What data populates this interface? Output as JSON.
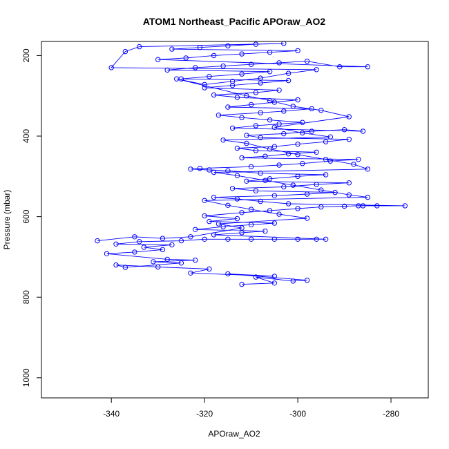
{
  "chart_data": {
    "type": "scatter",
    "title": "ATOM1 Northeast_Pacific APOraw_AO2",
    "xlabel": "APOraw_AO2",
    "ylabel": "Pressure (mbar)",
    "xlim": [
      -355,
      -272
    ],
    "ylim": [
      1050,
      165
    ],
    "y_reversed": true,
    "x_ticks": [
      -340,
      -320,
      -300,
      -280
    ],
    "y_ticks": [
      200,
      400,
      600,
      800,
      1000
    ],
    "marker": "open-circle",
    "connected_lines": true,
    "grid": false,
    "legend": "none",
    "colors": {
      "series": "#0000ff"
    },
    "series": [
      {
        "name": "",
        "points": [
          [
            -312,
            768
          ],
          [
            -305,
            765
          ],
          [
            -309,
            750
          ],
          [
            -301,
            760
          ],
          [
            -298,
            758
          ],
          [
            -315,
            742
          ],
          [
            -305,
            748
          ],
          [
            -323,
            740
          ],
          [
            -319,
            730
          ],
          [
            -330,
            725
          ],
          [
            -339,
            720
          ],
          [
            -337,
            726
          ],
          [
            -325,
            715
          ],
          [
            -331,
            712
          ],
          [
            -322,
            708
          ],
          [
            -328,
            706
          ],
          [
            -341,
            692
          ],
          [
            -335,
            688
          ],
          [
            -329,
            682
          ],
          [
            -333,
            676
          ],
          [
            -327,
            670
          ],
          [
            -339,
            668
          ],
          [
            -334,
            662
          ],
          [
            -325,
            660
          ],
          [
            -320,
            656
          ],
          [
            -315,
            656
          ],
          [
            -310,
            656
          ],
          [
            -305,
            656
          ],
          [
            -300,
            656
          ],
          [
            -296,
            656
          ],
          [
            -294,
            656
          ],
          [
            -318,
            645
          ],
          [
            -312,
            640
          ],
          [
            -307,
            636
          ],
          [
            -322,
            632
          ],
          [
            -316,
            625
          ],
          [
            -310,
            620
          ],
          [
            -305,
            616
          ],
          [
            -319,
            612
          ],
          [
            -313,
            605
          ],
          [
            -320,
            598
          ],
          [
            -312,
            590
          ],
          [
            -306,
            585
          ],
          [
            -300,
            580
          ],
          [
            -295,
            576
          ],
          [
            -290,
            574
          ],
          [
            -287,
            573
          ],
          [
            -286,
            573
          ],
          [
            -283,
            573
          ],
          [
            -277,
            573
          ],
          [
            -302,
            568
          ],
          [
            -308,
            562
          ],
          [
            -313,
            556
          ],
          [
            -318,
            552
          ],
          [
            -305,
            548
          ],
          [
            -298,
            544
          ],
          [
            -292,
            540
          ],
          [
            -309,
            536
          ],
          [
            -314,
            530
          ],
          [
            -303,
            526
          ],
          [
            -296,
            520
          ],
          [
            -289,
            516
          ],
          [
            -311,
            512
          ],
          [
            -306,
            506
          ],
          [
            -300,
            500
          ],
          [
            -294,
            496
          ],
          [
            -308,
            492
          ],
          [
            -315,
            486
          ],
          [
            -319,
            484
          ],
          [
            -323,
            482
          ],
          [
            -321,
            480
          ],
          [
            -310,
            476
          ],
          [
            -304,
            472
          ],
          [
            -299,
            468
          ],
          [
            -293,
            462
          ],
          [
            -287,
            458
          ],
          [
            -312,
            454
          ],
          [
            -307,
            450
          ],
          [
            -302,
            444
          ],
          [
            -296,
            440
          ],
          [
            -309,
            436
          ],
          [
            -313,
            430
          ],
          [
            -305,
            426
          ],
          [
            -300,
            420
          ],
          [
            -294,
            414
          ],
          [
            -289,
            408
          ],
          [
            -308,
            404
          ],
          [
            -311,
            398
          ],
          [
            -303,
            394
          ],
          [
            -297,
            388
          ],
          [
            -290,
            384
          ],
          [
            -286,
            388
          ],
          [
            -314,
            380
          ],
          [
            -309,
            374
          ],
          [
            -304,
            370
          ],
          [
            -299,
            366
          ],
          [
            -306,
            360
          ],
          [
            -312,
            354
          ],
          [
            -317,
            348
          ],
          [
            -308,
            342
          ],
          [
            -303,
            338
          ],
          [
            -297,
            332
          ],
          [
            -315,
            328
          ],
          [
            -310,
            322
          ],
          [
            -305,
            316
          ],
          [
            -300,
            310
          ],
          [
            -313,
            304
          ],
          [
            -318,
            298
          ],
          [
            -309,
            292
          ],
          [
            -304,
            286
          ],
          [
            -320,
            280
          ],
          [
            -314,
            274
          ],
          [
            -308,
            268
          ],
          [
            -302,
            262
          ],
          [
            -325,
            258
          ],
          [
            -319,
            252
          ],
          [
            -312,
            246
          ],
          [
            -306,
            240
          ],
          [
            -328,
            236
          ],
          [
            -322,
            230
          ],
          [
            -316,
            226
          ],
          [
            -310,
            222
          ],
          [
            -304,
            218
          ],
          [
            -298,
            214
          ],
          [
            -291,
            228
          ],
          [
            -285,
            228
          ],
          [
            -330,
            210
          ],
          [
            -324,
            206
          ],
          [
            -318,
            200
          ],
          [
            -312,
            196
          ],
          [
            -306,
            192
          ],
          [
            -300,
            188
          ],
          [
            -327,
            184
          ],
          [
            -321,
            180
          ],
          [
            -315,
            176
          ],
          [
            -309,
            172
          ],
          [
            -303,
            170
          ],
          [
            -334,
            178
          ],
          [
            -337,
            190
          ],
          [
            -340,
            230
          ],
          [
            -296,
            235
          ],
          [
            -302,
            244
          ],
          [
            -308,
            256
          ],
          [
            -314,
            264
          ],
          [
            -320,
            272
          ],
          [
            -326,
            258
          ],
          [
            -311,
            300
          ],
          [
            -306,
            312
          ],
          [
            -301,
            326
          ],
          [
            -295,
            336
          ],
          [
            -289,
            352
          ],
          [
            -305,
            378
          ],
          [
            -299,
            392
          ],
          [
            -293,
            402
          ],
          [
            -316,
            410
          ],
          [
            -311,
            418
          ],
          [
            -306,
            432
          ],
          [
            -300,
            446
          ],
          [
            -294,
            458
          ],
          [
            -288,
            470
          ],
          [
            -285,
            482
          ],
          [
            -318,
            490
          ],
          [
            -313,
            498
          ],
          [
            -307,
            510
          ],
          [
            -301,
            522
          ],
          [
            -295,
            534
          ],
          [
            -289,
            546
          ],
          [
            -285,
            552
          ],
          [
            -320,
            560
          ],
          [
            -315,
            572
          ],
          [
            -310,
            582
          ],
          [
            -304,
            594
          ],
          [
            -298,
            604
          ],
          [
            -317,
            618
          ],
          [
            -312,
            628
          ],
          [
            -323,
            650
          ],
          [
            -329,
            654
          ],
          [
            -335,
            650
          ],
          [
            -343,
            660
          ]
        ]
      }
    ]
  }
}
